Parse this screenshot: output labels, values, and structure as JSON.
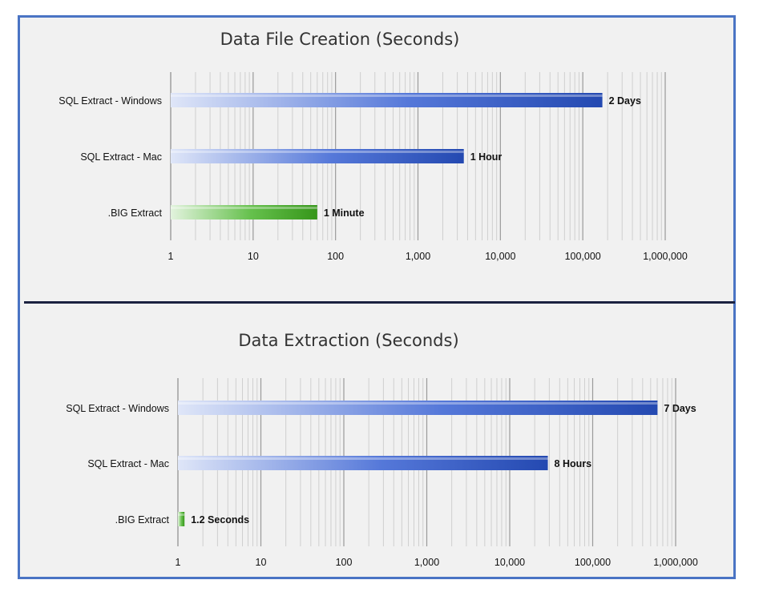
{
  "chart_data": [
    {
      "type": "bar",
      "orientation": "horizontal",
      "title": "Data File Creation (Seconds)",
      "xscale": "log",
      "xlim": [
        1,
        1000000
      ],
      "xticks": [
        "1",
        "10",
        "100",
        "1,000",
        "10,000",
        "100,000",
        "1,000,000"
      ],
      "grid": true,
      "categories": [
        "SQL Extract - Windows",
        "SQL Extract - Mac",
        ".BIG Extract"
      ],
      "values": [
        172800,
        3600,
        60
      ],
      "labels": [
        "2 Days",
        "1 Hour",
        "1 Minute"
      ],
      "colors": [
        "#2a56d0",
        "#2a56d0",
        "#3fb01f"
      ]
    },
    {
      "type": "bar",
      "orientation": "horizontal",
      "title": "Data Extraction (Seconds)",
      "xscale": "log",
      "xlim": [
        1,
        1000000
      ],
      "xticks": [
        "1",
        "10",
        "100",
        "1,000",
        "10,000",
        "100,000",
        "1,000,000"
      ],
      "grid": true,
      "categories": [
        "SQL Extract - Windows",
        "SQL Extract - Mac",
        ".BIG Extract"
      ],
      "values": [
        604800,
        28800,
        1.2
      ],
      "labels": [
        "7 Days",
        "8 Hours",
        "1.2 Seconds"
      ],
      "colors": [
        "#2a56d0",
        "#2a56d0",
        "#3fb01f"
      ]
    }
  ]
}
